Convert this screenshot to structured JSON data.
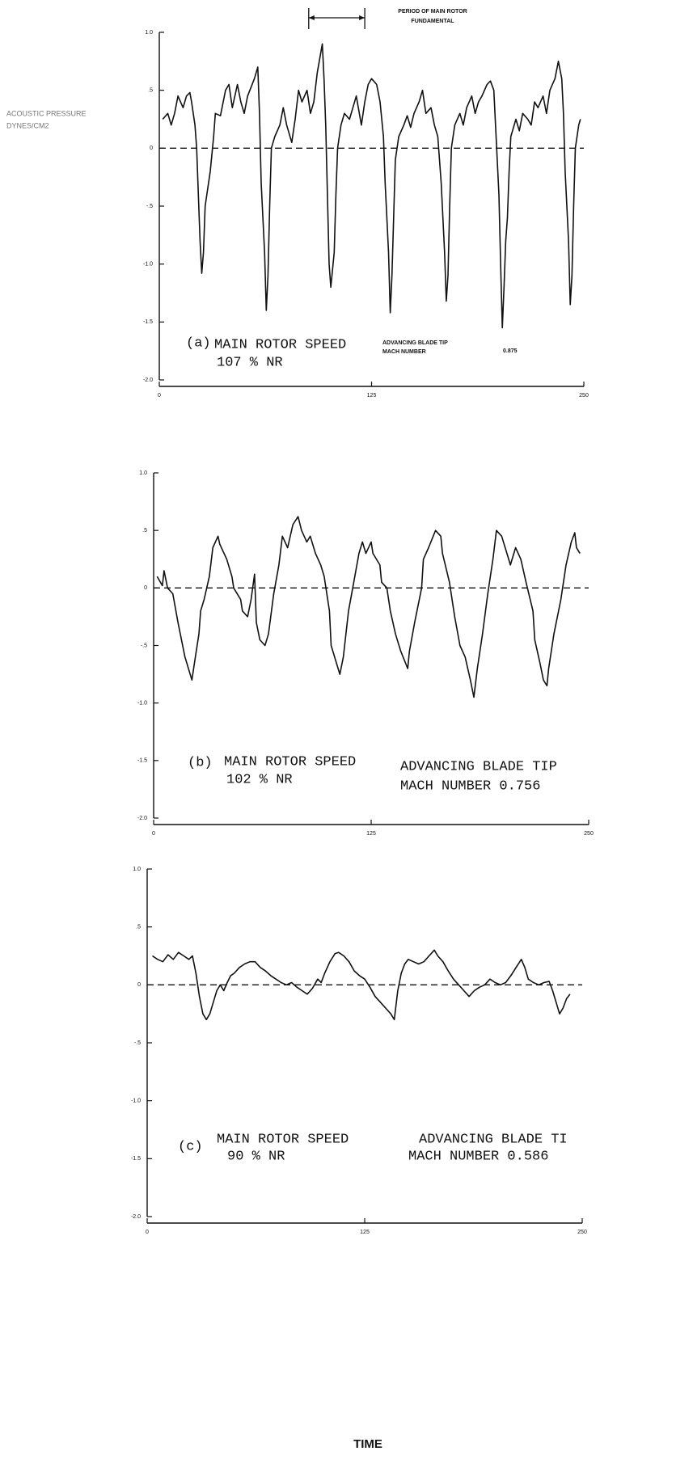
{
  "chart_data": [
    {
      "type": "line",
      "ylabel": [
        "ACOUSTIC PRESSURE",
        "DYNES/CM2"
      ],
      "period_annotation": {
        "text": [
          "PERIOD OF MAIN ROTOR",
          "FUNDAMENTAL"
        ],
        "span": [
          88,
          121
        ]
      },
      "annotations": [
        "(a)",
        "MAIN ROTOR SPEED",
        "107 % NR",
        "ADVANCING BLADE TIP",
        "MACH NUMBER",
        "0.875"
      ],
      "color": "#111111",
      "zero_line": 0,
      "xlim": [
        0,
        250
      ],
      "xticks": [
        0,
        125,
        250
      ],
      "ylim": [
        -2.0,
        1.0
      ],
      "yticks": [
        {
          "value": 1.0,
          "label": "1.0"
        },
        {
          "value": 0.5,
          "label": ".5"
        },
        0,
        {
          "value": -0.5,
          "label": "-.5"
        },
        {
          "value": -1.0,
          "label": "-1.0"
        },
        {
          "value": -1.5,
          "label": "-1.5"
        },
        {
          "value": -2.0,
          "label": "-2.0"
        }
      ],
      "x": [
        2,
        5,
        7,
        9,
        11,
        14,
        16,
        18,
        19,
        21,
        22,
        23,
        24,
        25,
        26,
        27,
        30,
        32,
        33,
        36,
        39,
        41,
        43,
        46,
        48,
        50,
        52,
        56,
        58,
        59,
        60,
        62,
        63,
        64,
        65,
        66,
        68,
        71,
        73,
        75,
        78,
        80,
        82,
        84,
        87,
        89,
        91,
        93,
        96,
        97,
        98,
        99,
        100,
        101,
        103,
        104,
        105,
        107,
        109,
        112,
        114,
        116,
        119,
        121,
        123,
        125,
        128,
        130,
        132,
        133,
        135,
        136,
        137,
        138,
        139,
        141,
        144,
        146,
        148,
        150,
        153,
        155,
        157,
        160,
        162,
        164,
        166,
        168,
        169,
        170,
        171,
        172,
        174,
        177,
        179,
        181,
        184,
        186,
        188,
        190,
        193,
        195,
        197,
        198,
        200,
        201,
        202,
        203,
        204,
        205,
        206,
        207,
        210,
        212,
        214,
        217,
        219,
        221,
        223,
        226,
        228,
        230,
        233,
        235,
        237,
        238,
        239,
        241,
        242,
        243,
        244,
        245,
        247,
        248
      ],
      "values": [
        0.25,
        0.3,
        0.2,
        0.3,
        0.45,
        0.35,
        0.45,
        0.48,
        0.4,
        0.2,
        0,
        -0.4,
        -0.8,
        -1.08,
        -0.9,
        -0.5,
        -0.2,
        0.1,
        0.3,
        0.28,
        0.5,
        0.55,
        0.35,
        0.55,
        0.4,
        0.3,
        0.45,
        0.6,
        0.7,
        0.3,
        -0.3,
        -0.9,
        -1.4,
        -1.1,
        -0.5,
        0,
        0.1,
        0.2,
        0.35,
        0.2,
        0.05,
        0.25,
        0.5,
        0.4,
        0.5,
        0.3,
        0.4,
        0.65,
        0.9,
        0.6,
        0.2,
        -0.4,
        -1,
        -1.2,
        -0.9,
        -0.4,
        0,
        0.2,
        0.3,
        0.25,
        0.35,
        0.45,
        0.2,
        0.4,
        0.55,
        0.6,
        0.55,
        0.4,
        0.1,
        -0.3,
        -0.9,
        -1.42,
        -1.1,
        -0.6,
        -0.1,
        0.1,
        0.2,
        0.28,
        0.18,
        0.3,
        0.4,
        0.5,
        0.3,
        0.35,
        0.2,
        0.1,
        -0.3,
        -0.9,
        -1.32,
        -1.1,
        -0.5,
        0,
        0.2,
        0.3,
        0.2,
        0.35,
        0.45,
        0.3,
        0.4,
        0.45,
        0.55,
        0.58,
        0.5,
        0.2,
        -0.4,
        -1,
        -1.55,
        -1.2,
        -0.8,
        -0.6,
        -0.2,
        0.1,
        0.25,
        0.15,
        0.3,
        0.25,
        0.2,
        0.4,
        0.35,
        0.45,
        0.3,
        0.5,
        0.6,
        0.75,
        0.6,
        0.3,
        -0.2,
        -0.8,
        -1.35,
        -1.1,
        -0.5,
        0,
        0.2,
        0.25
      ]
    },
    {
      "type": "line",
      "annotations": [
        "(b)",
        "MAIN ROTOR SPEED",
        "102 % NR",
        "ADVANCING BLADE TIP",
        "MACH NUMBER 0.756"
      ],
      "color": "#111111",
      "zero_line": 0,
      "xlim": [
        0,
        250
      ],
      "xticks": [
        0,
        125,
        250
      ],
      "ylim": [
        -2.0,
        1.0
      ],
      "yticks": [
        {
          "value": 1.0,
          "label": "1.0"
        },
        {
          "value": 0.5,
          "label": ".5"
        },
        0,
        {
          "value": -0.5,
          "label": "-.5"
        },
        {
          "value": -1.0,
          "label": "-1.0"
        },
        {
          "value": -1.5,
          "label": "-1.5"
        },
        {
          "value": -2.0,
          "label": "-2.0"
        }
      ],
      "x": [
        2,
        5,
        6,
        8,
        11,
        14,
        18,
        19,
        22,
        24,
        26,
        27,
        29,
        32,
        34,
        37,
        38,
        42,
        45,
        46,
        50,
        51,
        54,
        56,
        58,
        59,
        61,
        64,
        66,
        69,
        72,
        74,
        77,
        80,
        83,
        85,
        88,
        90,
        93,
        96,
        98,
        101,
        102,
        106,
        107,
        109,
        112,
        115,
        118,
        120,
        122,
        125,
        126,
        130,
        131,
        134,
        136,
        139,
        142,
        146,
        147,
        150,
        154,
        155,
        158,
        162,
        165,
        166,
        170,
        173,
        176,
        179,
        182,
        184,
        186,
        189,
        192,
        195,
        197,
        200,
        203,
        205,
        208,
        211,
        214,
        218,
        219,
        222,
        224,
        226,
        227,
        230,
        234,
        237,
        240,
        242,
        243,
        245
      ],
      "values": [
        0.1,
        0.02,
        0.15,
        0,
        -0.05,
        -0.3,
        -0.6,
        -0.65,
        -0.8,
        -0.6,
        -0.4,
        -0.2,
        -0.1,
        0.1,
        0.35,
        0.45,
        0.38,
        0.25,
        0.1,
        0,
        -0.1,
        -0.2,
        -0.25,
        -0.1,
        0.12,
        -0.3,
        -0.45,
        -0.5,
        -0.4,
        -0.05,
        0.2,
        0.45,
        0.35,
        0.55,
        0.62,
        0.5,
        0.4,
        0.45,
        0.3,
        0.2,
        0.1,
        -0.2,
        -0.5,
        -0.7,
        -0.75,
        -0.6,
        -0.2,
        0.05,
        0.3,
        0.4,
        0.3,
        0.4,
        0.3,
        0.2,
        0.05,
        0,
        -0.2,
        -0.4,
        -0.55,
        -0.7,
        -0.55,
        -0.3,
        0,
        0.25,
        0.35,
        0.5,
        0.45,
        0.3,
        0.05,
        -0.25,
        -0.5,
        -0.6,
        -0.8,
        -0.95,
        -0.7,
        -0.4,
        -0.05,
        0.25,
        0.5,
        0.45,
        0.3,
        0.2,
        0.35,
        0.25,
        0.05,
        -0.2,
        -0.45,
        -0.65,
        -0.8,
        -0.85,
        -0.7,
        -0.4,
        -0.1,
        0.2,
        0.4,
        0.48,
        0.35,
        0.3
      ]
    },
    {
      "type": "line",
      "annotations": [
        "(c)",
        "MAIN ROTOR SPEED",
        "90 % NR",
        "ADVANCING BLADE TI",
        "MACH NUMBER 0.586"
      ],
      "xlabel": "TIME",
      "color": "#111111",
      "zero_line": 0,
      "xlim": [
        0,
        250
      ],
      "xticks": [
        0,
        125,
        250
      ],
      "ylim": [
        -2.0,
        1.0
      ],
      "yticks": [
        {
          "value": 1.0,
          "label": "1.0"
        },
        {
          "value": 0.5,
          "label": ".5"
        },
        0,
        {
          "value": -0.5,
          "label": "-.5"
        },
        {
          "value": -1.0,
          "label": "-1.0"
        },
        {
          "value": -1.5,
          "label": "-1.5"
        },
        {
          "value": -2.0,
          "label": "-2.0"
        }
      ],
      "x": [
        3,
        6,
        9,
        12,
        15,
        18,
        21,
        24,
        26,
        28,
        30,
        32,
        34,
        36,
        38,
        40,
        42,
        44,
        46,
        48,
        50,
        53,
        56,
        59,
        62,
        65,
        68,
        71,
        74,
        77,
        80,
        83,
        86,
        89,
        92,
        95,
        98,
        100,
        102,
        105,
        108,
        110,
        113,
        116,
        119,
        122,
        125,
        128,
        131,
        134,
        137,
        140,
        142,
        144,
        146,
        148,
        150,
        153,
        156,
        159,
        162,
        165,
        167,
        170,
        173,
        176,
        179,
        182,
        185,
        188,
        191,
        194,
        197,
        200,
        203,
        206,
        209,
        212,
        215,
        217,
        219,
        222,
        225,
        228,
        231,
        233,
        235,
        237,
        239,
        241,
        243
      ],
      "values": [
        0.25,
        0.22,
        0.2,
        0.26,
        0.22,
        0.28,
        0.25,
        0.22,
        0.25,
        0.1,
        -0.1,
        -0.25,
        -0.3,
        -0.25,
        -0.15,
        -0.05,
        0,
        -0.05,
        0.02,
        0.08,
        0.1,
        0.15,
        0.18,
        0.2,
        0.2,
        0.15,
        0.12,
        0.08,
        0.05,
        0.02,
        0,
        0.02,
        -0.02,
        -0.05,
        -0.08,
        -0.03,
        0.05,
        0.02,
        0.1,
        0.2,
        0.27,
        0.28,
        0.25,
        0.2,
        0.12,
        0.08,
        0.05,
        -0.02,
        -0.1,
        -0.15,
        -0.2,
        -0.25,
        -0.3,
        -0.05,
        0.1,
        0.18,
        0.22,
        0.2,
        0.18,
        0.2,
        0.25,
        0.3,
        0.25,
        0.2,
        0.12,
        0.05,
        0,
        -0.05,
        -0.1,
        -0.05,
        -0.02,
        0,
        0.05,
        0.02,
        0,
        0.02,
        0.08,
        0.15,
        0.22,
        0.15,
        0.05,
        0.02,
        0,
        0.02,
        0.03,
        -0.05,
        -0.15,
        -0.25,
        -0.2,
        -0.12,
        -0.08
      ]
    }
  ]
}
